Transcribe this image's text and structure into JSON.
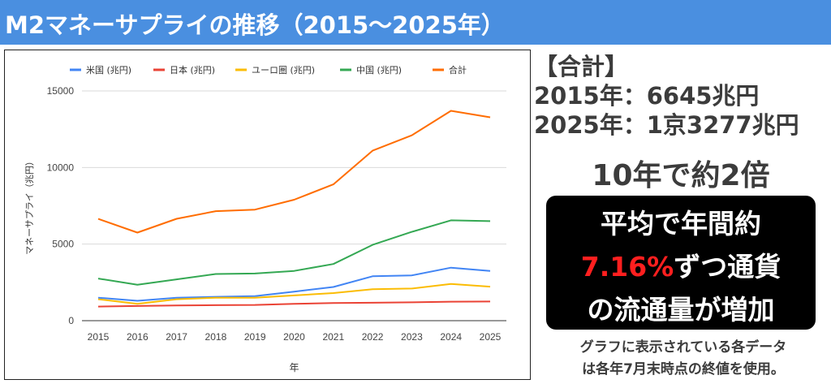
{
  "header": {
    "title": "M2マネーサプライの推移（2015〜2025年）"
  },
  "colors": {
    "header_bg": "#4a8fe0",
    "us": "#4285f4",
    "japan": "#ea4335",
    "euro": "#fbbc04",
    "china": "#34a853",
    "total": "#ff6d01"
  },
  "chart_data": {
    "type": "line",
    "title": "",
    "xlabel": "年",
    "ylabel": "マネーサプライ（兆円）",
    "ylim": [
      0,
      15000
    ],
    "yticks": [
      "0",
      "5000",
      "10000",
      "15000"
    ],
    "x": [
      "2015",
      "2016",
      "2017",
      "2018",
      "2019",
      "2020",
      "2021",
      "2022",
      "2023",
      "2024",
      "2025"
    ],
    "legend_position": "top",
    "grid": true,
    "series": [
      {
        "name": "米国 (兆円)",
        "color": "#4285f4",
        "values": [
          1500,
          1300,
          1500,
          1560,
          1600,
          1900,
          2200,
          2900,
          2960,
          3460,
          3250
        ]
      },
      {
        "name": "日本 (兆円)",
        "color": "#ea4335",
        "values": [
          920,
          960,
          990,
          1010,
          1030,
          1100,
          1150,
          1170,
          1200,
          1240,
          1250
        ]
      },
      {
        "name": "ユーロ圏 (兆円)",
        "color": "#fbbc04",
        "values": [
          1400,
          1100,
          1400,
          1500,
          1500,
          1650,
          1800,
          2050,
          2100,
          2400,
          2220
        ]
      },
      {
        "name": "中国 (兆円)",
        "color": "#34a853",
        "values": [
          2750,
          2350,
          2700,
          3050,
          3080,
          3250,
          3700,
          4950,
          5800,
          6550,
          6500
        ]
      },
      {
        "name": "合計",
        "color": "#ff6d01",
        "values": [
          6645,
          5750,
          6650,
          7150,
          7250,
          7900,
          8900,
          11100,
          12100,
          13700,
          13277
        ]
      }
    ]
  },
  "summary": {
    "heading": "【合計】",
    "line2015": "2015年：6645兆円",
    "line2025": "2025年：1京3277兆円",
    "headline": "10年で約2倍"
  },
  "callout": {
    "line1": "平均で年間約",
    "rate": "7.16%",
    "line2_rest": "ずつ通貨",
    "line3": "の流通量が増加"
  },
  "note": {
    "line1": "グラフに表示されている各データ",
    "line2": "は各年7月末時点の終値を使用。"
  }
}
